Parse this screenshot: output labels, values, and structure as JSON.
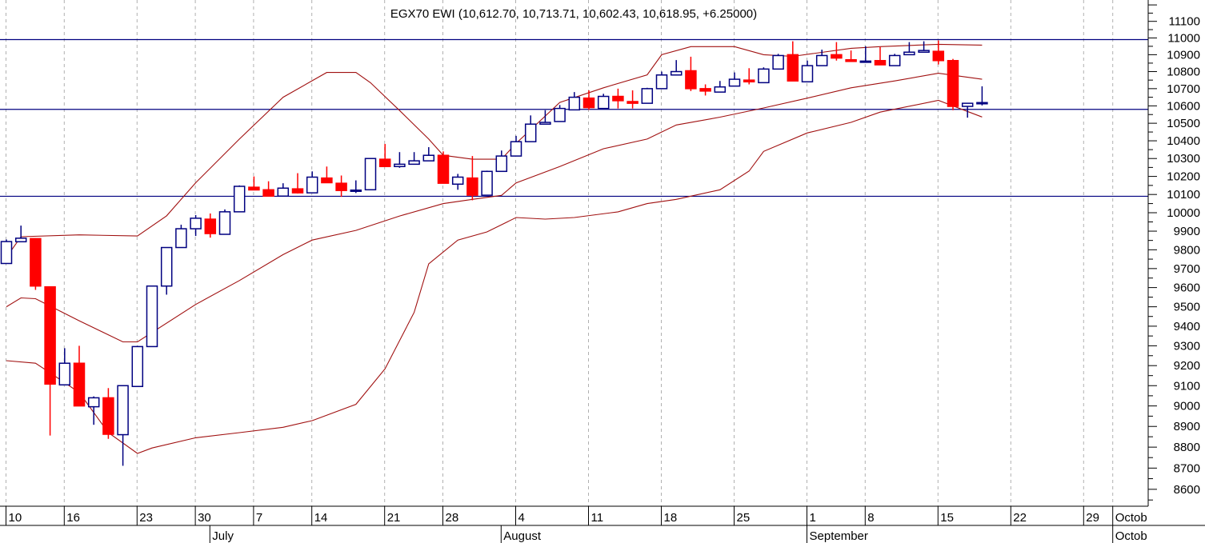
{
  "chart_data": {
    "type": "candlestick",
    "title": "EGX70 EWI (10,612.70, 10,713.71, 10,602.43, 10,618.95, +6.25000)",
    "y_scale": "log",
    "ylim": [
      8500,
      11250
    ],
    "y_ticks": [
      11100,
      11000,
      10900,
      10800,
      10700,
      10600,
      10500,
      10400,
      10300,
      10200,
      10100,
      10000,
      9900,
      9800,
      9700,
      9600,
      9500,
      9400,
      9300,
      9200,
      9100,
      9000,
      8900,
      8800,
      8700,
      8600
    ],
    "x_day_labels": [
      {
        "label": "10",
        "i": 0
      },
      {
        "label": "16",
        "i": 4
      },
      {
        "label": "23",
        "i": 9
      },
      {
        "label": "30",
        "i": 13
      },
      {
        "label": "7",
        "i": 17
      },
      {
        "label": "14",
        "i": 21
      },
      {
        "label": "21",
        "i": 26
      },
      {
        "label": "28",
        "i": 30
      },
      {
        "label": "4",
        "i": 35
      },
      {
        "label": "11",
        "i": 40
      },
      {
        "label": "18",
        "i": 45
      },
      {
        "label": "25",
        "i": 50
      },
      {
        "label": "1",
        "i": 55
      },
      {
        "label": "8",
        "i": 59
      },
      {
        "label": "15",
        "i": 64
      },
      {
        "label": "22",
        "i": 69
      },
      {
        "label": "29",
        "i": 74
      },
      {
        "label": "Octob",
        "i": 76
      }
    ],
    "x_month_labels": [
      {
        "label": "July",
        "i": 14
      },
      {
        "label": "August",
        "i": 34
      },
      {
        "label": "September",
        "i": 55
      },
      {
        "label": "Octob",
        "i": 76
      }
    ],
    "horizontal_lines": [
      10990,
      10580,
      10090
    ],
    "candles_ohlc": [
      [
        9727,
        9855,
        9727,
        9844
      ],
      [
        9843,
        9930,
        9843,
        9862
      ],
      [
        9860,
        9862,
        9588,
        9608
      ],
      [
        9604,
        9604,
        8856,
        9108
      ],
      [
        9104,
        9288,
        9104,
        9212
      ],
      [
        9212,
        9300,
        9000,
        9000
      ],
      [
        8996,
        9047,
        8908,
        9040
      ],
      [
        9040,
        9088,
        8840,
        8862
      ],
      [
        8860,
        9100,
        8711,
        9100
      ],
      [
        9096,
        9300,
        9096,
        9296
      ],
      [
        9296,
        9608,
        9296,
        9608
      ],
      [
        9608,
        9812,
        9563,
        9812
      ],
      [
        9812,
        9935,
        9812,
        9913
      ],
      [
        9913,
        9987,
        9874,
        9970
      ],
      [
        9965,
        9996,
        9865,
        9887
      ],
      [
        9883,
        10018,
        9883,
        10005
      ],
      [
        10005,
        10150,
        10005,
        10145
      ],
      [
        10140,
        10200,
        10125,
        10125
      ],
      [
        10126,
        10173,
        10091,
        10091
      ],
      [
        10091,
        10162,
        10091,
        10135
      ],
      [
        10131,
        10218,
        10105,
        10109
      ],
      [
        10109,
        10228,
        10109,
        10196
      ],
      [
        10191,
        10255,
        10165,
        10165
      ],
      [
        10162,
        10205,
        10087,
        10122
      ],
      [
        10120,
        10178,
        10108,
        10124
      ],
      [
        10126,
        10300,
        10126,
        10300
      ],
      [
        10296,
        10382,
        10255,
        10255
      ],
      [
        10255,
        10336,
        10248,
        10268
      ],
      [
        10268,
        10336,
        10268,
        10287
      ],
      [
        10287,
        10364,
        10287,
        10318
      ],
      [
        10318,
        10340,
        10162,
        10162
      ],
      [
        10157,
        10214,
        10126,
        10196
      ],
      [
        10191,
        10314,
        10068,
        10096
      ],
      [
        10096,
        10232,
        10096,
        10228
      ],
      [
        10228,
        10345,
        10228,
        10314
      ],
      [
        10314,
        10428,
        10314,
        10395
      ],
      [
        10395,
        10545,
        10395,
        10495
      ],
      [
        10495,
        10575,
        10495,
        10505
      ],
      [
        10510,
        10605,
        10510,
        10585
      ],
      [
        10577,
        10680,
        10577,
        10650
      ],
      [
        10645,
        10690,
        10577,
        10590
      ],
      [
        10585,
        10670,
        10585,
        10655
      ],
      [
        10655,
        10700,
        10585,
        10630
      ],
      [
        10625,
        10690,
        10585,
        10615
      ],
      [
        10615,
        10705,
        10615,
        10700
      ],
      [
        10700,
        10800,
        10700,
        10780
      ],
      [
        10780,
        10868,
        10780,
        10800
      ],
      [
        10805,
        10888,
        10686,
        10700
      ],
      [
        10700,
        10725,
        10660,
        10686
      ],
      [
        10680,
        10745,
        10680,
        10710
      ],
      [
        10715,
        10795,
        10715,
        10755
      ],
      [
        10750,
        10820,
        10725,
        10740
      ],
      [
        10735,
        10825,
        10735,
        10815
      ],
      [
        10815,
        10905,
        10815,
        10895
      ],
      [
        10900,
        10980,
        10745,
        10745
      ],
      [
        10740,
        10865,
        10740,
        10835
      ],
      [
        10835,
        10930,
        10835,
        10895
      ],
      [
        10900,
        10975,
        10865,
        10880
      ],
      [
        10870,
        10925,
        10860,
        10860
      ],
      [
        10858,
        10950,
        10858,
        10862
      ],
      [
        10865,
        10945,
        10840,
        10840
      ],
      [
        10835,
        10905,
        10835,
        10895
      ],
      [
        10900,
        10975,
        10900,
        10915
      ],
      [
        10915,
        10980,
        10915,
        10925
      ],
      [
        10920,
        10985,
        10842,
        10865
      ],
      [
        10865,
        10875,
        10575,
        10597
      ],
      [
        10597,
        10615,
        10532,
        10615
      ],
      [
        10612.7,
        10713.71,
        10602.43,
        10618.95
      ]
    ],
    "bollinger": {
      "upper": [
        [
          0,
          9760
        ],
        [
          1,
          9870
        ],
        [
          5,
          9880
        ],
        [
          9,
          9874
        ],
        [
          11,
          9983
        ],
        [
          13,
          10165
        ],
        [
          16,
          10410
        ],
        [
          19,
          10650
        ],
        [
          22,
          10795
        ],
        [
          24,
          10795
        ],
        [
          25,
          10735
        ],
        [
          27,
          10573
        ],
        [
          29,
          10410
        ],
        [
          30,
          10318
        ],
        [
          32,
          10296
        ],
        [
          34,
          10296
        ],
        [
          35,
          10386
        ],
        [
          38,
          10620
        ],
        [
          41,
          10705
        ],
        [
          44,
          10781
        ],
        [
          45,
          10900
        ],
        [
          47,
          10948
        ],
        [
          50,
          10948
        ],
        [
          52,
          10900
        ],
        [
          54,
          10890
        ],
        [
          58,
          10938
        ],
        [
          60,
          10948
        ],
        [
          64,
          10962
        ],
        [
          67,
          10957
        ]
      ],
      "middle": [
        [
          0,
          9500
        ],
        [
          1,
          9546
        ],
        [
          2,
          9542
        ],
        [
          5,
          9428
        ],
        [
          8,
          9320
        ],
        [
          9,
          9320
        ],
        [
          13,
          9512
        ],
        [
          16,
          9637
        ],
        [
          19,
          9774
        ],
        [
          21,
          9852
        ],
        [
          24,
          9904
        ],
        [
          27,
          9982
        ],
        [
          30,
          10050
        ],
        [
          32,
          10073
        ],
        [
          34,
          10095
        ],
        [
          35,
          10164
        ],
        [
          38,
          10255
        ],
        [
          41,
          10355
        ],
        [
          44,
          10410
        ],
        [
          46,
          10490
        ],
        [
          49,
          10535
        ],
        [
          52,
          10588
        ],
        [
          55,
          10645
        ],
        [
          58,
          10705
        ],
        [
          61,
          10745
        ],
        [
          64,
          10790
        ],
        [
          67,
          10755
        ]
      ],
      "lower": [
        [
          0,
          9225
        ],
        [
          2,
          9212
        ],
        [
          3,
          9164
        ],
        [
          5,
          9066
        ],
        [
          7,
          8870
        ],
        [
          9,
          8770
        ],
        [
          10,
          8796
        ],
        [
          13,
          8845
        ],
        [
          16,
          8870
        ],
        [
          19,
          8896
        ],
        [
          21,
          8928
        ],
        [
          24,
          9008
        ],
        [
          26,
          9184
        ],
        [
          28,
          9471
        ],
        [
          29,
          9725
        ],
        [
          31,
          9852
        ],
        [
          33,
          9896
        ],
        [
          35,
          9974
        ],
        [
          37,
          9965
        ],
        [
          39,
          9974
        ],
        [
          42,
          10005
        ],
        [
          44,
          10050
        ],
        [
          46,
          10073
        ],
        [
          49,
          10126
        ],
        [
          51,
          10230
        ],
        [
          52,
          10340
        ],
        [
          55,
          10445
        ],
        [
          58,
          10505
        ],
        [
          60,
          10564
        ],
        [
          64,
          10632
        ],
        [
          67,
          10536
        ]
      ]
    },
    "colors": {
      "up": "#000080",
      "down": "#ff0000",
      "band": "#a01010",
      "hline": "#000080",
      "grid": "#b0b0b0"
    },
    "grid": true
  }
}
